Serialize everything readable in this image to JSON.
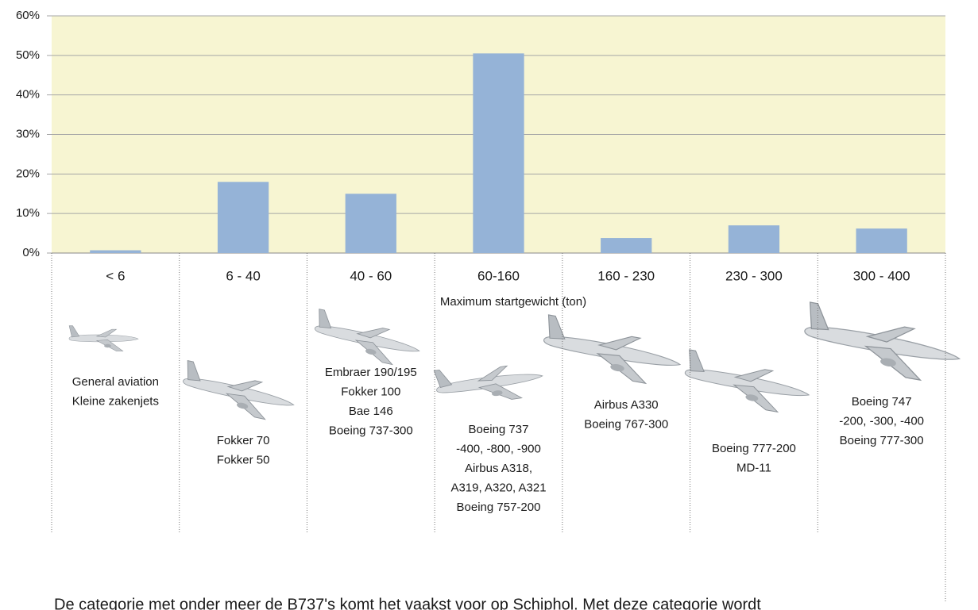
{
  "chart_data": {
    "type": "bar",
    "categories": [
      "< 6",
      "6 - 40",
      "40 - 60",
      "60-160",
      "160 - 230",
      "230 - 300",
      "300 - 400"
    ],
    "values": [
      0.7,
      18,
      15,
      50.5,
      3.8,
      7,
      6.2
    ],
    "color": "#95b3d7",
    "plot_background": "#f7f5d2",
    "ylim": [
      0,
      60
    ],
    "yticks": [
      {
        "value": 0,
        "label": "0%"
      },
      {
        "value": 10,
        "label": "10%"
      },
      {
        "value": 20,
        "label": "20%"
      },
      {
        "value": 30,
        "label": "30%"
      },
      {
        "value": 40,
        "label": "40%"
      },
      {
        "value": 50,
        "label": "50%"
      },
      {
        "value": 60,
        "label": "60%"
      }
    ],
    "grid": true,
    "xlabel": "Maximum startgewicht (ton)",
    "aircraft": [
      [
        "General aviation",
        "Kleine zakenjets"
      ],
      [
        "Fokker 70",
        "Fokker 50"
      ],
      [
        "Embraer 190/195",
        "Fokker 100",
        "Bae 146",
        "Boeing 737-300"
      ],
      [
        "Boeing 737",
        "-400, -800, -900",
        "Airbus A318,",
        "A319, A320, A321",
        "Boeing 757-200"
      ],
      [
        "Airbus A330",
        "Boeing 767-300"
      ],
      [
        "Boeing 777-200",
        "MD-11"
      ],
      [
        "Boeing 747",
        "-200, -300, -400",
        "Boeing 777-300"
      ]
    ],
    "caption": "De categorie met onder meer de B737's komt het vaakst voor op Schiphol. Met deze categorie wordt"
  }
}
